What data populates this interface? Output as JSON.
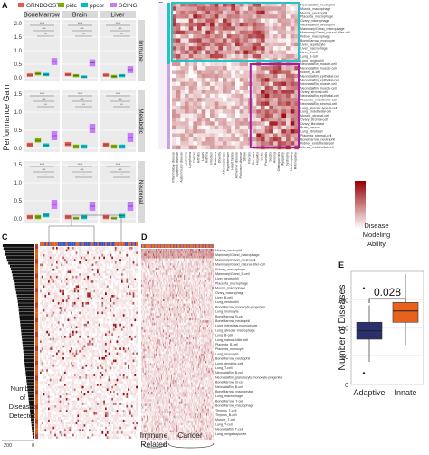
{
  "panel_letters": {
    "a": "A",
    "b": "B",
    "c": "C",
    "d": "D",
    "e": "E"
  },
  "colors": {
    "GRNBOOST2": "#e8574d",
    "pidc": "#7cae00",
    "ppcor": "#00bfc4",
    "SCING": "#c77cff",
    "heat_low": "#ffffff",
    "heat_high": "#8b0000",
    "box_adaptive": "#2b2f6b",
    "box_innate": "#e8621c",
    "frame_immune": "#22c4c8",
    "frame_metabolic": "#a020a0"
  },
  "icons": {
    "significance-bracket": "line",
    "legend-swatch": "rect"
  },
  "chart_data": [
    {
      "id": "A",
      "type": "box",
      "legend": [
        "GRNBOOST2",
        "pidc",
        "ppcor",
        "SCING"
      ],
      "legend_placement": "top",
      "ylabel": "Performance Gain",
      "columns": [
        "BoneMarrow",
        "Brain",
        "Liver"
      ],
      "rows": [
        "Immune",
        "Metabolic",
        "Neuronal"
      ],
      "ylim": [
        0,
        2.0
      ],
      "yticks_row1": [
        "0.0",
        "0.5",
        "1.0",
        "1.5",
        "2.0"
      ],
      "yticks": [
        "0.0",
        "0.5",
        "1.0",
        "1.5"
      ],
      "series_order": [
        "GRNBOOST2",
        "pidc",
        "ppcor",
        "SCING"
      ],
      "medians": {
        "Immune": {
          "BoneMarrow": [
            0.1,
            0.15,
            0.12,
            0.6
          ],
          "Brain": [
            0.12,
            0.08,
            0.03,
            0.55
          ],
          "Liver": [
            0.1,
            0.05,
            0.08,
            0.3
          ]
        },
        "Metabolic": {
          "BoneMarrow": [
            0.1,
            0.22,
            0.08,
            0.35
          ],
          "Brain": [
            0.12,
            0.05,
            0.05,
            0.55
          ],
          "Liver": [
            0.1,
            0.05,
            0.05,
            0.3
          ]
        },
        "Neuronal": {
          "BoneMarrow": [
            0.05,
            0.05,
            0.1,
            0.4
          ],
          "Brain": [
            0.05,
            0.0,
            0.05,
            0.35
          ],
          "Liver": [
            0.05,
            0.0,
            0.08,
            0.35
          ]
        }
      },
      "significance_labels": [
        "****",
        "***",
        "**",
        "ns"
      ]
    },
    {
      "id": "B",
      "type": "heatmap",
      "row_labels": [
        "Neonatal/Bn_neutrophil",
        "Muscle_macrophage",
        "Muscle_neutrophil",
        "Placenta_macrophage",
        "Ovary_macrophage",
        "Neonatal/Bn_neutrophil",
        "Mammary/Gland_macrophage",
        "Mammary/Gland_natural-killer-cell",
        "Kidney_macrophage",
        "BoneMarrow_monocyte",
        "Liver_hepatocyte",
        "Liver_macrophage",
        "Liver_B-cell",
        "Lung_B-cell",
        "Lung_neutrophil",
        "Neonatal/Bn_muscle-cell",
        "Neonatal/Bn_muscle-cell",
        "Kidney_B-cell",
        "Neonatal/Bn_epithelial-cell",
        "Neonatal/Bn_epithelial-cell",
        "Neonatal/Bn_muscle-cell",
        "Neonatal/Bn_muscle-cell",
        "Ovary_stromal-cell",
        "Neonatal/Bn_epithelial-cell",
        "Placenta_endothelial-cell",
        "Neonatal/Bn_stromal-cell",
        "Lung_alveolar-type-II-cell",
        "Lung_endothelial-cell",
        "Muscle_stromal-cell",
        "Ovary_stromal-cell",
        "Ovary_fibroblast",
        "Brain_neuron",
        "Lung_fibroblast",
        "Placenta_stromal-cell",
        "BoneMarrow_neutrophil",
        "Kidney_endothelial-cell",
        "Uterus_endothelial-cell"
      ],
      "col_labels": [
        "Inflammatory disease",
        "Systemic disease",
        "Autoimmune disease",
        "Leukemia",
        "Lymphoma",
        "Cancer",
        "Arthritis",
        "Lupus",
        "Asthma",
        "Infection",
        "Diabetes",
        "Obesity",
        "Atherosclerosis",
        "Hypertension",
        "Heart failure",
        "Alzheimer disease",
        "Parkinson disease",
        "Stroke",
        "Fibrosis",
        "Cirrhosis",
        "Hepatitis",
        "Colitis",
        "Psoriasis",
        "Sepsis",
        "Anemia",
        "Osteoporosis",
        "Myopathy",
        "Dystrophy",
        "Nephropathy",
        "Retinopathy"
      ],
      "colorbar_label": "Disease\nModeling\nAbility",
      "colorbar_range": [
        0,
        1
      ],
      "frames": [
        "Immune",
        "Metabolic"
      ]
    },
    {
      "id": "C",
      "type": "bar",
      "orientation": "horizontal",
      "ylabel": "",
      "xlabel": "Number\nof\nDiseases\nDetected",
      "xticks": [
        "200",
        "0"
      ],
      "values": [
        195,
        190,
        182,
        178,
        172,
        168,
        160,
        150,
        145,
        140,
        135,
        132,
        128,
        120,
        118,
        115,
        112,
        108,
        105,
        102,
        100,
        98,
        96,
        94,
        92,
        90,
        88,
        86,
        84,
        82,
        80,
        78,
        76,
        74,
        72,
        70,
        68,
        66,
        64,
        62,
        60,
        58,
        56,
        54,
        52,
        50,
        48,
        46,
        44,
        42,
        40,
        38,
        36,
        34,
        32,
        30,
        28,
        26,
        24,
        22,
        20,
        18,
        16,
        14,
        12,
        10
      ]
    },
    {
      "id": "D",
      "type": "heatmap",
      "row_labels": [
        "Muscle_neutrophil",
        "Mammary/Gland_macrophage",
        "Mammary/Gland_neutrophil",
        "Mammary/Gland_natural-killer-cell",
        "Kidney_macrophage",
        "Mammary/Gland_B-cell",
        "Liver_neutrophil",
        "Placenta_macrophage",
        "Muscle_macrophage",
        "Ovary_macrophage",
        "Liver_B-cell",
        "Lung_neutrophil",
        "BoneMarrow_monocyte-progenitor",
        "Lung_monocyte",
        "BoneMarrow_B-cell",
        "BoneMarrow_neutrophil",
        "Lung_interstitial-macrophage",
        "Lung_alveolar-macrophage",
        "Lung_B-cell",
        "Lung_natural-killer-cell",
        "Placenta_B-cell",
        "Placenta_monocyte",
        "Lung_monocyte",
        "BoneMarrow_neutrophil",
        "Lung_dendritic-cell",
        "Lung_T-cell",
        "Neonatal/Bn_B-cell",
        "Neonatal/Bn_granulocyte-monocyte-progenitor",
        "BoneMarrow_B-cell",
        "Neonatal/Bn_B-cell",
        "BoneMarrow_macrophage",
        "Lung_macrophage",
        "BoneMarrow_T-cell",
        "BoneMarrow_macrophage",
        "Thymus_T-cell",
        "Thymus_B-cell",
        "Muscle_T-cell",
        "Lung_T-cell",
        "Neonatal/Bn_T-cell",
        "Lung_megakaryocyte"
      ],
      "col_groups": [
        "Immune\nRelated",
        "Cancer"
      ],
      "n_cols": 90
    },
    {
      "id": "E",
      "type": "box",
      "categories": [
        "Adaptive",
        "Innate"
      ],
      "ylabel": "Number of Diseases",
      "yticks": [
        "0",
        "50",
        "100",
        "150"
      ],
      "ylim": [
        0,
        200
      ],
      "boxes": [
        {
          "name": "Adaptive",
          "q1": 80,
          "median": 95,
          "q3": 110,
          "whisker_low": 40,
          "whisker_high": 140,
          "outliers": [
            170,
            20
          ]
        },
        {
          "name": "Innate",
          "q1": 110,
          "median": 130,
          "q3": 145,
          "whisker_low": 70,
          "whisker_high": 195,
          "outliers": []
        }
      ],
      "pvalue": "0.028"
    }
  ]
}
